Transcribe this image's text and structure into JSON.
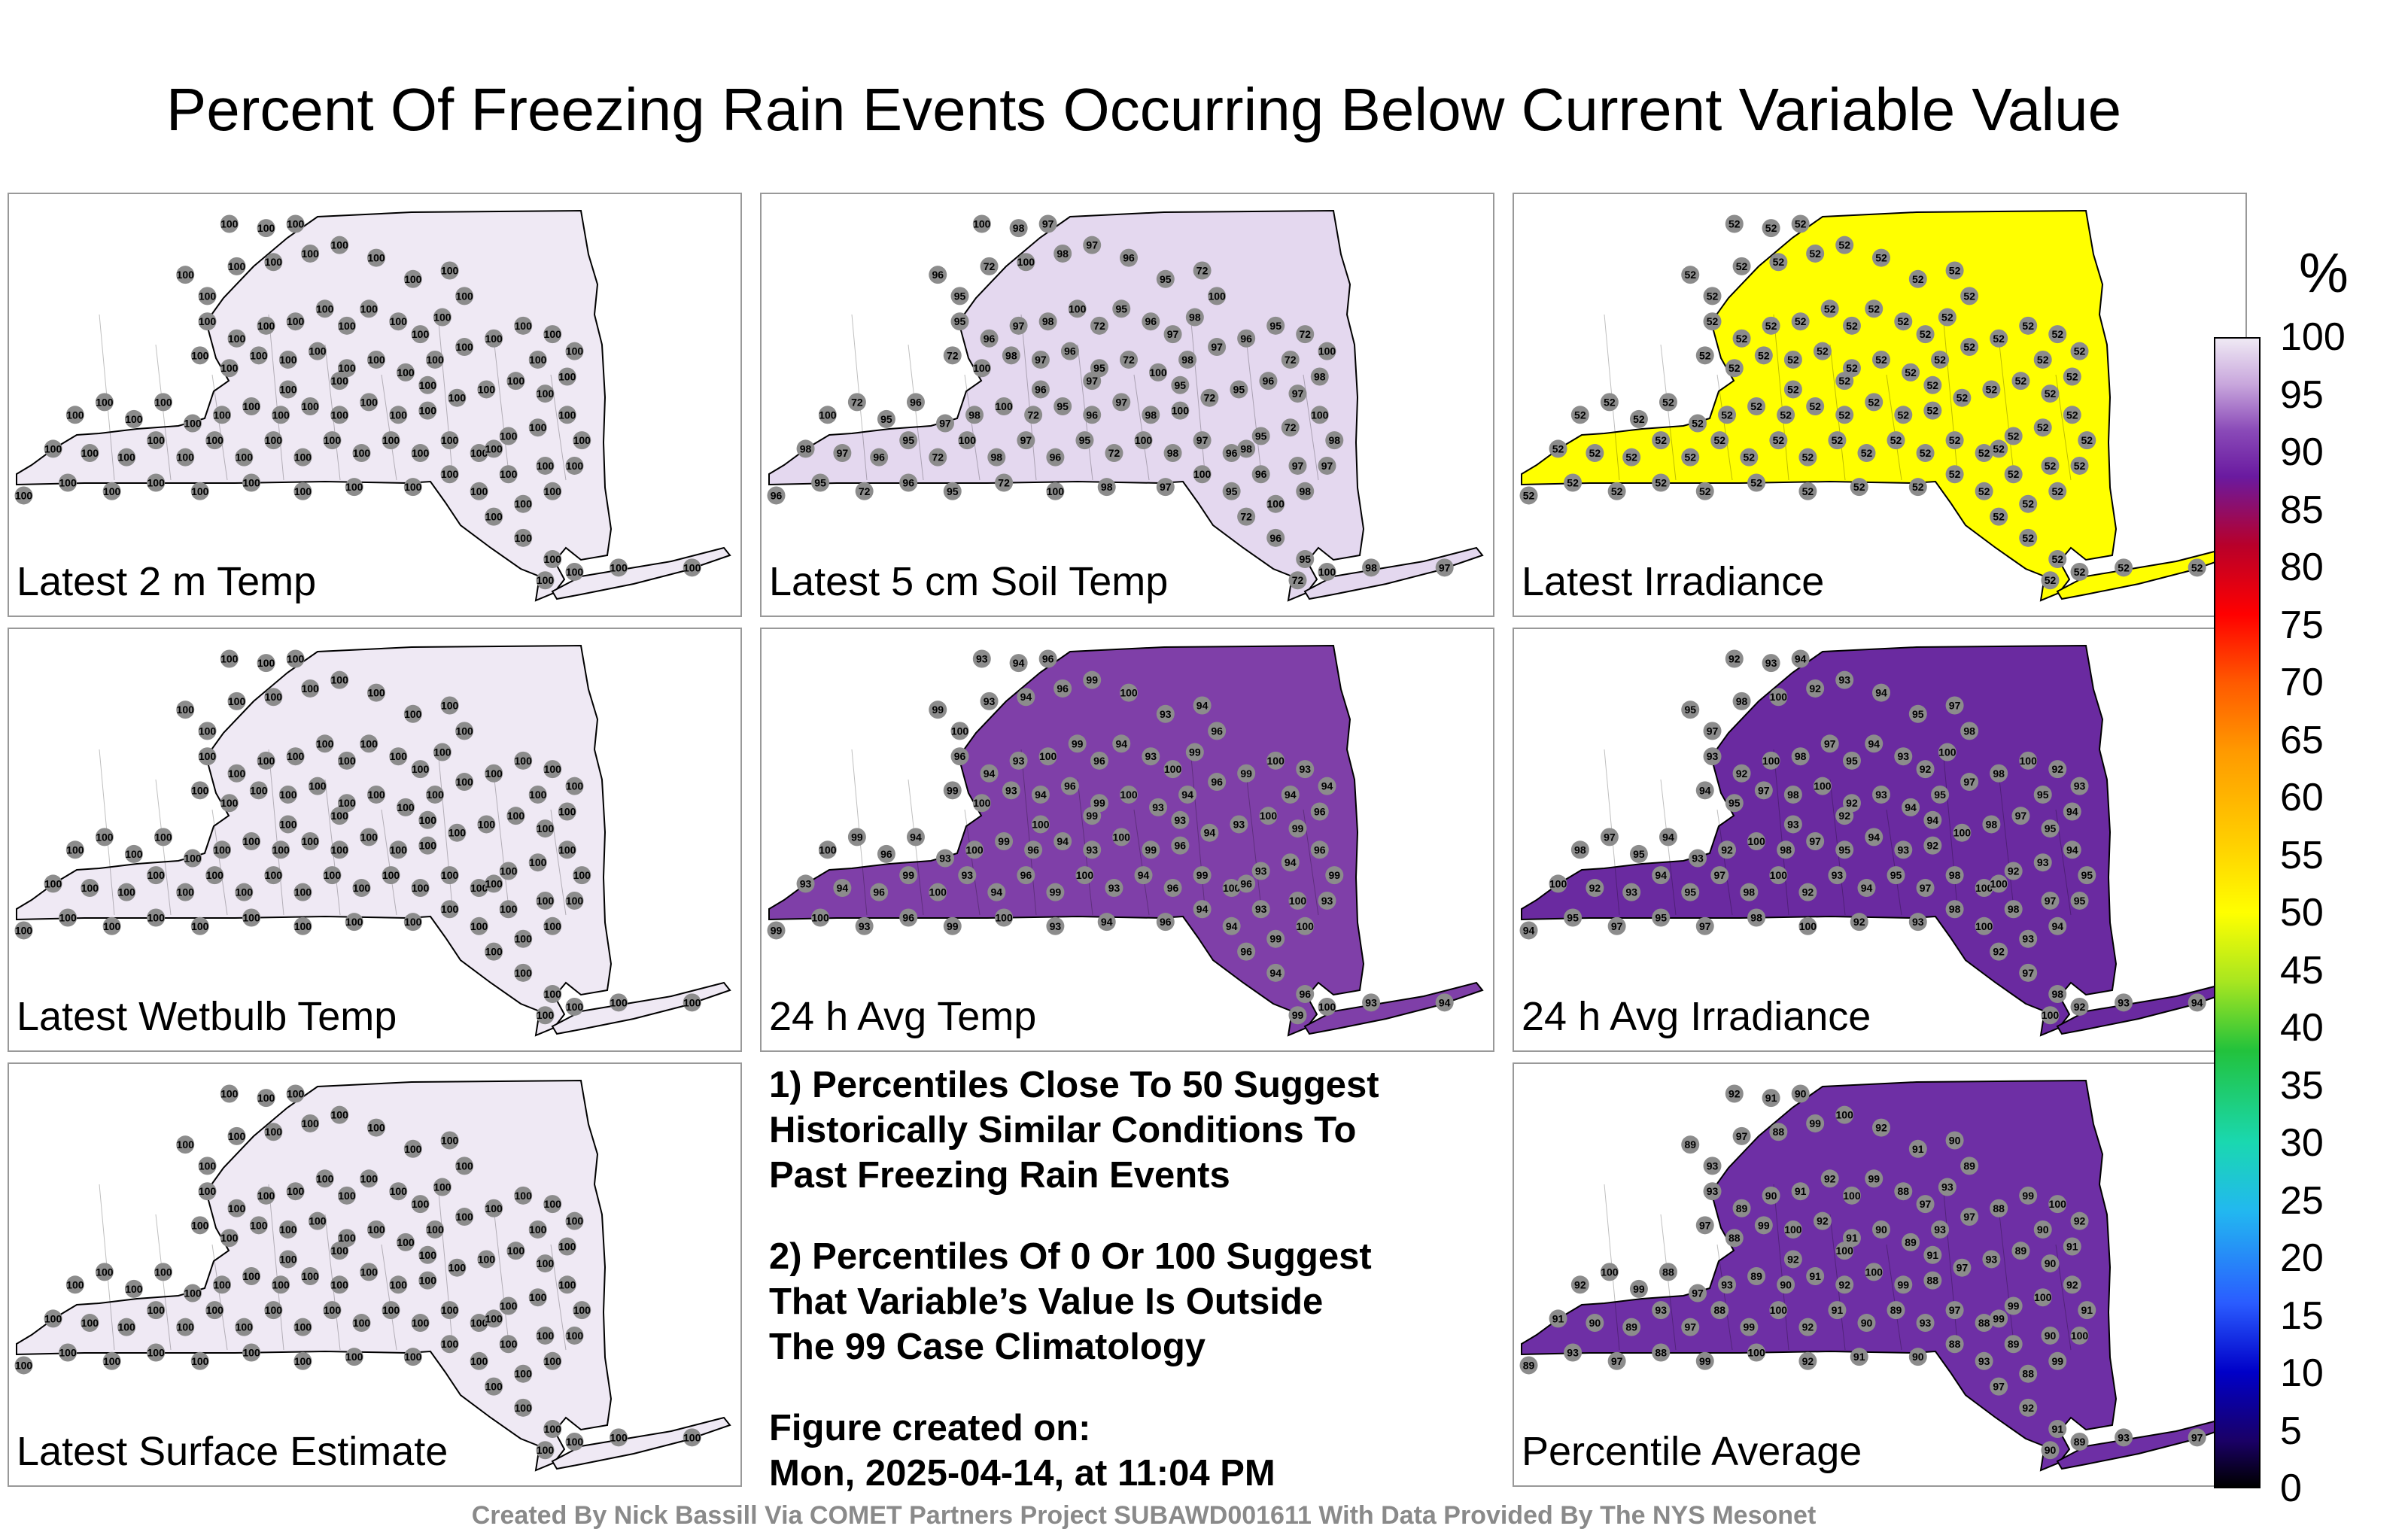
{
  "title": "Percent Of Freezing Rain Events Occurring Below Current Variable Value",
  "panels": [
    {
      "label": "Latest 2 m Temp",
      "fill": "#efe9f4",
      "values": [
        "100"
      ]
    },
    {
      "label": "Latest 5 cm Soil Temp",
      "fill": "#e4d8ef",
      "values": [
        "100",
        "98",
        "97",
        "96",
        "95",
        "72"
      ]
    },
    {
      "label": "Latest Irradiance",
      "fill": "#ffff00",
      "values": [
        "52"
      ]
    },
    {
      "label": "Latest Wetbulb Temp",
      "fill": "#efe9f4",
      "values": [
        "100"
      ]
    },
    {
      "label": "24 h Avg Temp",
      "fill": "#7f3fa8",
      "values": [
        "93",
        "94",
        "96",
        "99",
        "100"
      ]
    },
    {
      "label": "24 h Avg Irradiance",
      "fill": "#6a2aa0",
      "values": [
        "92",
        "93",
        "94",
        "95",
        "97",
        "98",
        "100"
      ]
    },
    {
      "label": "Latest Surface Estimate",
      "fill": "#efe9f4",
      "values": [
        "100"
      ]
    },
    {
      "label": "Percentile Average",
      "fill": "#6e2fa5",
      "values": [
        "92",
        "91",
        "90",
        "89",
        "93",
        "97",
        "88",
        "99",
        "100"
      ]
    }
  ],
  "notes": {
    "note1": "1) Percentiles Close To 50 Suggest\nHistorically Similar Conditions To\nPast Freezing Rain Events",
    "note2": "2) Percentiles Of 0 Or 100 Suggest\nThat Variable’s Value Is Outside\nThe 99 Case Climatology",
    "created": "Figure created on:\nMon, 2025-04-14, at 11:04 PM"
  },
  "colorbar": {
    "title": "%",
    "ticks": [
      "100",
      "95",
      "90",
      "85",
      "80",
      "75",
      "70",
      "65",
      "60",
      "55",
      "50",
      "45",
      "40",
      "35",
      "30",
      "25",
      "20",
      "15",
      "10",
      "5",
      "0"
    ]
  },
  "footer": "Created By Nick Bassill Via COMET Partners Project SUBAWD001611 With Data Provided By The NYS Mesonet"
}
